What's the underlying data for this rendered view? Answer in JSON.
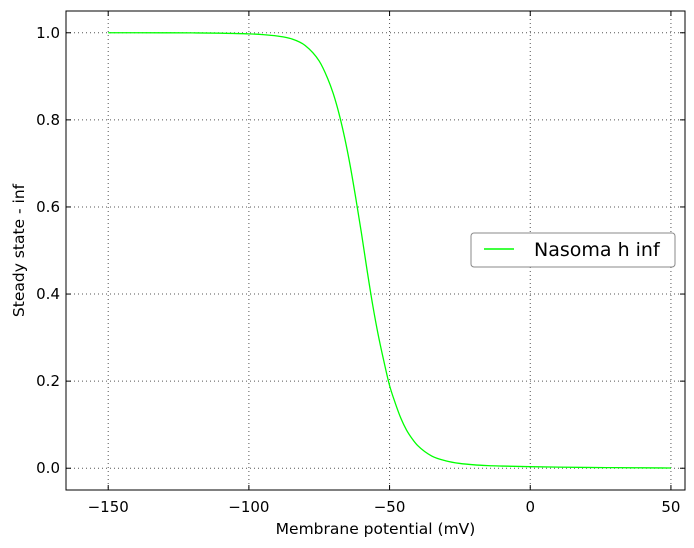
{
  "colors": {
    "series": "#00ff00",
    "grid": "#555555",
    "frame": "#000000",
    "legend_border": "#888888"
  },
  "chart_data": {
    "type": "line",
    "xlabel": "Membrane potential (mV)",
    "ylabel": "Steady state - inf",
    "xlim": [
      -165,
      55
    ],
    "ylim": [
      -0.05,
      1.05
    ],
    "xticks": [
      -150,
      -100,
      -50,
      0,
      50
    ],
    "xtick_labels": [
      "−150",
      "−100",
      "−50",
      "0",
      "50"
    ],
    "yticks": [
      0.0,
      0.2,
      0.4,
      0.6,
      0.8,
      1.0
    ],
    "ytick_labels": [
      "0.0",
      "0.2",
      "0.4",
      "0.6",
      "0.8",
      "1.0"
    ],
    "grid": true,
    "grid_style": "dotted",
    "legend_position": "center-right",
    "series": [
      {
        "name": "Nasoma h inf",
        "color": "#00ff00",
        "x": [
          -150,
          -140,
          -130,
          -120,
          -110,
          -100,
          -95,
          -90,
          -85,
          -80,
          -75,
          -72,
          -70,
          -68,
          -66,
          -64,
          -62,
          -60,
          -58,
          -56,
          -54,
          -52,
          -50,
          -48,
          -46,
          -44,
          -42,
          -40,
          -35,
          -30,
          -25,
          -20,
          -15,
          -10,
          0,
          10,
          20,
          30,
          40,
          50
        ],
        "y": [
          1.0,
          1.0,
          0.9999,
          0.9997,
          0.9991,
          0.9975,
          0.9958,
          0.9926,
          0.9864,
          0.9708,
          0.935,
          0.895,
          0.86,
          0.815,
          0.76,
          0.695,
          0.62,
          0.54,
          0.455,
          0.375,
          0.305,
          0.245,
          0.19,
          0.15,
          0.115,
          0.088,
          0.068,
          0.052,
          0.028,
          0.017,
          0.011,
          0.0078,
          0.006,
          0.005,
          0.0035,
          0.0025,
          0.0018,
          0.0013,
          0.0009,
          0.0006
        ]
      }
    ]
  }
}
